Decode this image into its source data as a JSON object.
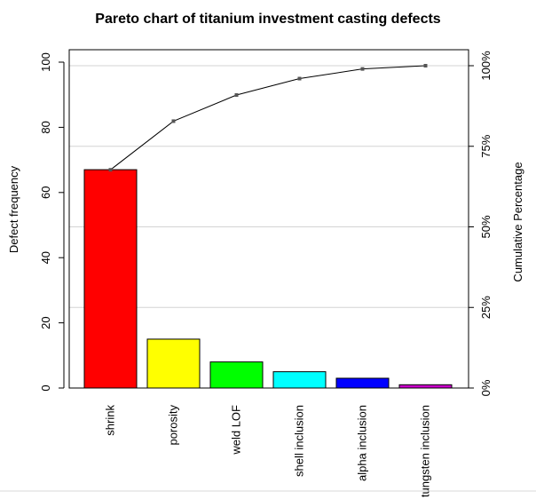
{
  "chart_data": {
    "type": "bar",
    "title": "Pareto chart of titanium investment casting defects",
    "categories": [
      "shrink",
      "porosity",
      "weld LOF",
      "shell inclusion",
      "alpha inclusion",
      "tungsten inclusion"
    ],
    "values": [
      67,
      15,
      8,
      5,
      3,
      1
    ],
    "bar_colors": [
      "#ff0000",
      "#ffff00",
      "#00ff00",
      "#00ffff",
      "#0000ff",
      "#cc00cc"
    ],
    "ylabel": "Defect frequency",
    "ylim": [
      0,
      100
    ],
    "yticks": [
      0,
      20,
      40,
      60,
      80,
      100
    ],
    "cumulative": {
      "values": [
        67.7,
        82.8,
        90.9,
        96.0,
        99.0,
        100.0
      ],
      "label": "Cumulative Percentage",
      "ticks": [
        "0%",
        "25%",
        "50%",
        "75%",
        "100%"
      ],
      "tick_values": [
        0,
        25,
        50,
        75,
        100
      ]
    },
    "grid": true
  }
}
